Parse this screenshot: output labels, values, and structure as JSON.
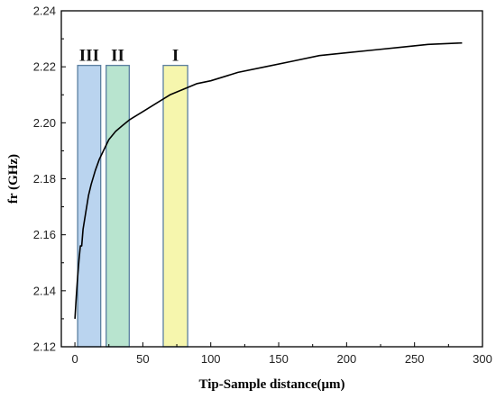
{
  "chart_data": {
    "type": "line",
    "xlabel": "Tip-Sample distance(μm)",
    "ylabel": "fr (GHz)",
    "xlim": [
      -10,
      300
    ],
    "ylim": [
      2.12,
      2.24
    ],
    "xticks": [
      0,
      50,
      100,
      150,
      200,
      250,
      300
    ],
    "yticks": [
      2.12,
      2.14,
      2.16,
      2.18,
      2.2,
      2.22,
      2.24
    ],
    "xtick_labels": [
      "0",
      "50",
      "100",
      "150",
      "200",
      "250",
      "300"
    ],
    "ytick_labels": [
      "2.12",
      "2.14",
      "2.16",
      "2.18",
      "2.20",
      "2.22",
      "2.24"
    ],
    "grid": false,
    "series": [
      {
        "x": [
          0,
          1,
          2,
          3,
          4,
          5,
          6,
          8,
          10,
          12,
          15,
          18,
          20,
          25,
          30,
          35,
          40,
          50,
          60,
          70,
          80,
          90,
          100,
          120,
          140,
          160,
          180,
          200,
          220,
          240,
          260,
          285
        ],
        "y": [
          2.13,
          2.138,
          2.145,
          2.151,
          2.156,
          2.156,
          2.162,
          2.168,
          2.174,
          2.178,
          2.183,
          2.187,
          2.189,
          2.194,
          2.197,
          2.199,
          2.201,
          2.204,
          2.207,
          2.21,
          2.212,
          2.214,
          2.215,
          2.218,
          2.22,
          2.222,
          2.224,
          2.225,
          2.226,
          2.227,
          2.228,
          2.2285
        ],
        "color": "#000000"
      }
    ],
    "regions": [
      {
        "label": "III",
        "x0": 2,
        "x1": 19,
        "y_top": 2.2205,
        "color": "#bad4ef",
        "edge": "#5b7fa0"
      },
      {
        "label": "II",
        "x0": 23,
        "x1": 40,
        "y_top": 2.2205,
        "color": "#b8e4cf",
        "edge": "#5b7fa0"
      },
      {
        "label": "I",
        "x0": 65,
        "x1": 83,
        "y_top": 2.2205,
        "color": "#f6f6ad",
        "edge": "#5b7fa0"
      }
    ]
  }
}
